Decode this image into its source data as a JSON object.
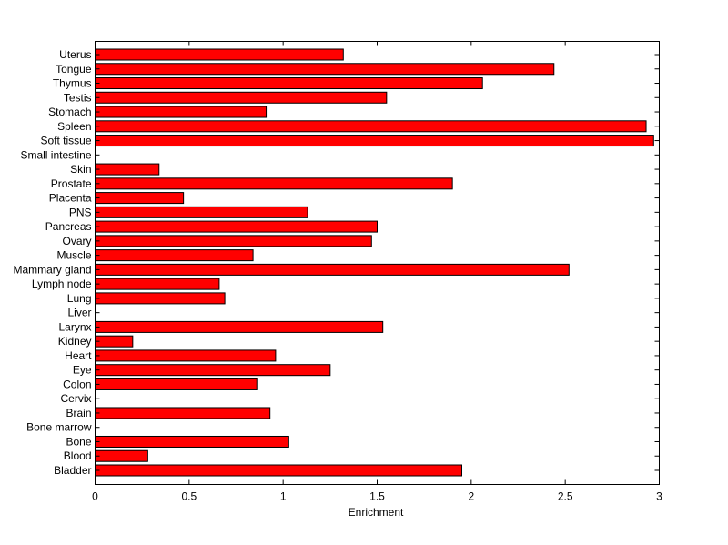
{
  "chart_data": {
    "type": "bar",
    "orientation": "horizontal",
    "categories": [
      "Uterus",
      "Tongue",
      "Thymus",
      "Testis",
      "Stomach",
      "Spleen",
      "Soft tissue",
      "Small intestine",
      "Skin",
      "Prostate",
      "Placenta",
      "PNS",
      "Pancreas",
      "Ovary",
      "Muscle",
      "Mammary gland",
      "Lymph node",
      "Lung",
      "Liver",
      "Larynx",
      "Kidney",
      "Heart",
      "Eye",
      "Colon",
      "Cervix",
      "Brain",
      "Bone marrow",
      "Bone",
      "Blood",
      "Bladder"
    ],
    "values": [
      1.32,
      2.44,
      2.06,
      1.55,
      0.91,
      2.93,
      2.97,
      0,
      0.34,
      1.9,
      0.47,
      1.13,
      1.5,
      1.47,
      0.84,
      2.52,
      0.66,
      0.69,
      0,
      1.53,
      0.2,
      0.96,
      1.25,
      0.86,
      0,
      0.93,
      0,
      1.03,
      0.28,
      1.95
    ],
    "xlabel": "Enrichment",
    "ylabel": "",
    "title": "",
    "xlim": [
      0,
      3
    ],
    "xticks": [
      "0",
      "0.5",
      "1",
      "1.5",
      "2",
      "2.5",
      "3"
    ],
    "bar_color": "#ff0000",
    "bar_edge_color": "#000000",
    "grid": false
  }
}
